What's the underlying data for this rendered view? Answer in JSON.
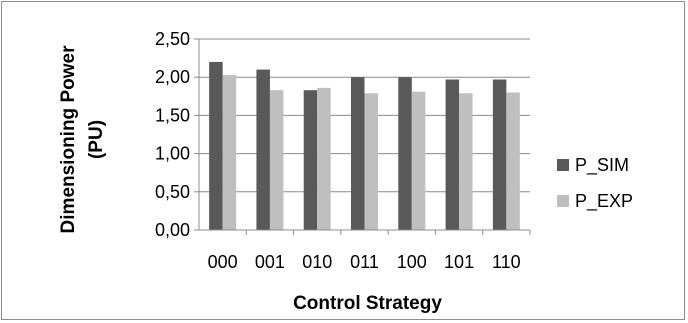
{
  "chart_data": {
    "type": "bar",
    "categories": [
      "000",
      "001",
      "010",
      "011",
      "100",
      "101",
      "110"
    ],
    "series": [
      {
        "name": "P_SIM",
        "values": [
          2.2,
          2.1,
          1.83,
          2.0,
          2.0,
          1.97,
          1.97
        ],
        "color": "#595959"
      },
      {
        "name": "P_EXP",
        "values": [
          2.03,
          1.83,
          1.86,
          1.79,
          1.81,
          1.79,
          1.8
        ],
        "color": "#bfbfbf"
      }
    ],
    "xlabel": "Control Strategy",
    "ylabel": "Dimensioning Power (PU)",
    "ylabel_lines": [
      "Dimensioning Power",
      "(PU)"
    ],
    "ylim": [
      0,
      2.5
    ],
    "yticks": [
      "0,00",
      "0,50",
      "1,00",
      "1,50",
      "2,00",
      "2,50"
    ],
    "grid": true,
    "legend_position": "right"
  }
}
